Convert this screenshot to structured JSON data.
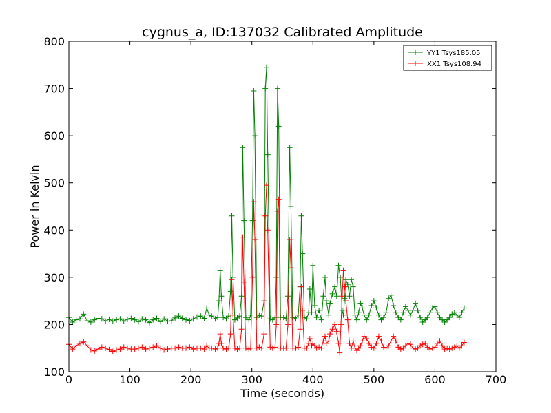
{
  "chart_data": {
    "type": "line",
    "title": "cygnus_a, ID:137032 Calibrated Amplitude",
    "xlabel": "Time (seconds)",
    "ylabel": "Power in Kelvin",
    "xlim": [
      0,
      700
    ],
    "ylim": [
      100,
      800
    ],
    "xticks": [
      0,
      100,
      200,
      300,
      400,
      500,
      600,
      700
    ],
    "yticks": [
      100,
      200,
      300,
      400,
      500,
      600,
      700,
      800
    ],
    "grid": false,
    "legend_position": "top-right",
    "marker": "+",
    "series": [
      {
        "name": "YY1 Tsys185.05",
        "color": "#008000",
        "points": [
          [
            0,
            215
          ],
          [
            6,
            205
          ],
          [
            12,
            210
          ],
          [
            18,
            212
          ],
          [
            24,
            222
          ],
          [
            30,
            208
          ],
          [
            36,
            205
          ],
          [
            42,
            210
          ],
          [
            48,
            213
          ],
          [
            54,
            212
          ],
          [
            60,
            207
          ],
          [
            66,
            211
          ],
          [
            72,
            207
          ],
          [
            78,
            210
          ],
          [
            84,
            212
          ],
          [
            90,
            207
          ],
          [
            96,
            211
          ],
          [
            102,
            213
          ],
          [
            108,
            210
          ],
          [
            114,
            206
          ],
          [
            120,
            212
          ],
          [
            126,
            210
          ],
          [
            132,
            204
          ],
          [
            138,
            210
          ],
          [
            144,
            213
          ],
          [
            150,
            206
          ],
          [
            156,
            212
          ],
          [
            162,
            207
          ],
          [
            168,
            208
          ],
          [
            174,
            214
          ],
          [
            180,
            218
          ],
          [
            186,
            213
          ],
          [
            192,
            210
          ],
          [
            198,
            208
          ],
          [
            204,
            212
          ],
          [
            210,
            216
          ],
          [
            216,
            218
          ],
          [
            222,
            213
          ],
          [
            226,
            235
          ],
          [
            230,
            220
          ],
          [
            234,
            218
          ],
          [
            240,
            212
          ],
          [
            244,
            215
          ],
          [
            246,
            250
          ],
          [
            248,
            315
          ],
          [
            250,
            260
          ],
          [
            253,
            215
          ],
          [
            258,
            212
          ],
          [
            262,
            218
          ],
          [
            265,
            270
          ],
          [
            267,
            430
          ],
          [
            269,
            300
          ],
          [
            272,
            210
          ],
          [
            276,
            214
          ],
          [
            280,
            218
          ],
          [
            283,
            260
          ],
          [
            285,
            575
          ],
          [
            287,
            420
          ],
          [
            290,
            215
          ],
          [
            295,
            210
          ],
          [
            298,
            220
          ],
          [
            301,
            420
          ],
          [
            303,
            695
          ],
          [
            305,
            600
          ],
          [
            308,
            215
          ],
          [
            312,
            220
          ],
          [
            316,
            218
          ],
          [
            320,
            250
          ],
          [
            322,
            700
          ],
          [
            324,
            745
          ],
          [
            326,
            560
          ],
          [
            330,
            212
          ],
          [
            334,
            210
          ],
          [
            338,
            215
          ],
          [
            340,
            300
          ],
          [
            342,
            700
          ],
          [
            344,
            620
          ],
          [
            347,
            215
          ],
          [
            352,
            215
          ],
          [
            356,
            212
          ],
          [
            359,
            260
          ],
          [
            362,
            575
          ],
          [
            364,
            450
          ],
          [
            367,
            215
          ],
          [
            372,
            212
          ],
          [
            376,
            220
          ],
          [
            379,
            280
          ],
          [
            381,
            430
          ],
          [
            383,
            350
          ],
          [
            386,
            215
          ],
          [
            390,
            212
          ],
          [
            393,
            225
          ],
          [
            395,
            275
          ],
          [
            398,
            225
          ],
          [
            400,
            325
          ],
          [
            403,
            240
          ],
          [
            406,
            215
          ],
          [
            410,
            230
          ],
          [
            414,
            210
          ],
          [
            417,
            260
          ],
          [
            420,
            300
          ],
          [
            422,
            250
          ],
          [
            426,
            220
          ],
          [
            428,
            245
          ],
          [
            432,
            265
          ],
          [
            436,
            280
          ],
          [
            439,
            260
          ],
          [
            442,
            325
          ],
          [
            445,
            300
          ],
          [
            448,
            230
          ],
          [
            450,
            220
          ],
          [
            452,
            255
          ],
          [
            454,
            295
          ],
          [
            457,
            285
          ],
          [
            460,
            260
          ],
          [
            463,
            295
          ],
          [
            466,
            280
          ],
          [
            469,
            220
          ],
          [
            472,
            210
          ],
          [
            475,
            225
          ],
          [
            478,
            245
          ],
          [
            481,
            235
          ],
          [
            484,
            220
          ],
          [
            488,
            210
          ],
          [
            492,
            220
          ],
          [
            496,
            240
          ],
          [
            500,
            250
          ],
          [
            504,
            235
          ],
          [
            508,
            220
          ],
          [
            512,
            210
          ],
          [
            516,
            215
          ],
          [
            520,
            225
          ],
          [
            524,
            255
          ],
          [
            528,
            262
          ],
          [
            532,
            240
          ],
          [
            536,
            225
          ],
          [
            540,
            215
          ],
          [
            544,
            210
          ],
          [
            548,
            225
          ],
          [
            552,
            238
          ],
          [
            556,
            230
          ],
          [
            560,
            220
          ],
          [
            564,
            230
          ],
          [
            568,
            245
          ],
          [
            572,
            230
          ],
          [
            576,
            215
          ],
          [
            580,
            205
          ],
          [
            584,
            210
          ],
          [
            588,
            215
          ],
          [
            592,
            225
          ],
          [
            596,
            235
          ],
          [
            600,
            238
          ],
          [
            604,
            225
          ],
          [
            608,
            215
          ],
          [
            612,
            210
          ],
          [
            616,
            205
          ],
          [
            620,
            210
          ],
          [
            624,
            215
          ],
          [
            628,
            222
          ],
          [
            632,
            225
          ],
          [
            636,
            220
          ],
          [
            640,
            215
          ],
          [
            644,
            225
          ],
          [
            648,
            235
          ]
        ]
      },
      {
        "name": "XX1 Tsys108.94",
        "color": "#ff0000",
        "points": [
          [
            0,
            158
          ],
          [
            6,
            148
          ],
          [
            12,
            155
          ],
          [
            18,
            160
          ],
          [
            24,
            163
          ],
          [
            30,
            155
          ],
          [
            36,
            146
          ],
          [
            42,
            144
          ],
          [
            48,
            148
          ],
          [
            54,
            152
          ],
          [
            60,
            150
          ],
          [
            66,
            147
          ],
          [
            72,
            143
          ],
          [
            78,
            146
          ],
          [
            84,
            148
          ],
          [
            90,
            152
          ],
          [
            96,
            150
          ],
          [
            102,
            148
          ],
          [
            108,
            148
          ],
          [
            114,
            150
          ],
          [
            120,
            152
          ],
          [
            126,
            148
          ],
          [
            132,
            150
          ],
          [
            138,
            152
          ],
          [
            144,
            155
          ],
          [
            150,
            150
          ],
          [
            156,
            146
          ],
          [
            162,
            148
          ],
          [
            168,
            150
          ],
          [
            174,
            150
          ],
          [
            180,
            152
          ],
          [
            186,
            150
          ],
          [
            192,
            150
          ],
          [
            198,
            152
          ],
          [
            204,
            148
          ],
          [
            210,
            150
          ],
          [
            216,
            150
          ],
          [
            222,
            148
          ],
          [
            226,
            155
          ],
          [
            230,
            150
          ],
          [
            234,
            150
          ],
          [
            240,
            148
          ],
          [
            244,
            150
          ],
          [
            246,
            160
          ],
          [
            248,
            180
          ],
          [
            250,
            160
          ],
          [
            253,
            150
          ],
          [
            258,
            148
          ],
          [
            262,
            150
          ],
          [
            265,
            180
          ],
          [
            267,
            295
          ],
          [
            269,
            220
          ],
          [
            272,
            150
          ],
          [
            276,
            148
          ],
          [
            280,
            150
          ],
          [
            283,
            190
          ],
          [
            285,
            385
          ],
          [
            287,
            290
          ],
          [
            290,
            150
          ],
          [
            295,
            148
          ],
          [
            298,
            150
          ],
          [
            301,
            300
          ],
          [
            303,
            460
          ],
          [
            305,
            380
          ],
          [
            308,
            150
          ],
          [
            312,
            152
          ],
          [
            316,
            150
          ],
          [
            320,
            180
          ],
          [
            322,
            430
          ],
          [
            324,
            495
          ],
          [
            326,
            400
          ],
          [
            330,
            152
          ],
          [
            334,
            150
          ],
          [
            338,
            152
          ],
          [
            340,
            200
          ],
          [
            342,
            440
          ],
          [
            344,
            465
          ],
          [
            347,
            150
          ],
          [
            352,
            150
          ],
          [
            356,
            150
          ],
          [
            359,
            200
          ],
          [
            362,
            380
          ],
          [
            364,
            320
          ],
          [
            367,
            150
          ],
          [
            372,
            150
          ],
          [
            376,
            152
          ],
          [
            379,
            190
          ],
          [
            381,
            280
          ],
          [
            383,
            230
          ],
          [
            386,
            150
          ],
          [
            390,
            150
          ],
          [
            393,
            160
          ],
          [
            395,
            170
          ],
          [
            398,
            155
          ],
          [
            400,
            160
          ],
          [
            403,
            155
          ],
          [
            406,
            150
          ],
          [
            410,
            152
          ],
          [
            414,
            150
          ],
          [
            417,
            165
          ],
          [
            420,
            175
          ],
          [
            422,
            160
          ],
          [
            426,
            165
          ],
          [
            428,
            180
          ],
          [
            432,
            190
          ],
          [
            436,
            200
          ],
          [
            439,
            185
          ],
          [
            442,
            160
          ],
          [
            444,
            140
          ],
          [
            446,
            200
          ],
          [
            448,
            260
          ],
          [
            450,
            315
          ],
          [
            452,
            280
          ],
          [
            454,
            250
          ],
          [
            457,
            210
          ],
          [
            460,
            160
          ],
          [
            463,
            150
          ],
          [
            466,
            165
          ],
          [
            469,
            150
          ],
          [
            472,
            145
          ],
          [
            475,
            150
          ],
          [
            478,
            155
          ],
          [
            481,
            165
          ],
          [
            484,
            175
          ],
          [
            488,
            170
          ],
          [
            492,
            160
          ],
          [
            496,
            152
          ],
          [
            500,
            150
          ],
          [
            504,
            160
          ],
          [
            508,
            175
          ],
          [
            512,
            165
          ],
          [
            516,
            152
          ],
          [
            520,
            150
          ],
          [
            524,
            155
          ],
          [
            528,
            165
          ],
          [
            532,
            175
          ],
          [
            536,
            165
          ],
          [
            540,
            152
          ],
          [
            544,
            148
          ],
          [
            548,
            150
          ],
          [
            552,
            155
          ],
          [
            556,
            160
          ],
          [
            560,
            158
          ],
          [
            564,
            150
          ],
          [
            568,
            148
          ],
          [
            572,
            150
          ],
          [
            576,
            155
          ],
          [
            580,
            158
          ],
          [
            584,
            160
          ],
          [
            588,
            152
          ],
          [
            592,
            148
          ],
          [
            596,
            150
          ],
          [
            600,
            152
          ],
          [
            604,
            160
          ],
          [
            608,
            165
          ],
          [
            612,
            155
          ],
          [
            616,
            148
          ],
          [
            620,
            150
          ],
          [
            624,
            148
          ],
          [
            628,
            150
          ],
          [
            632,
            152
          ],
          [
            636,
            155
          ],
          [
            640,
            150
          ],
          [
            644,
            155
          ],
          [
            648,
            162
          ]
        ]
      }
    ]
  }
}
